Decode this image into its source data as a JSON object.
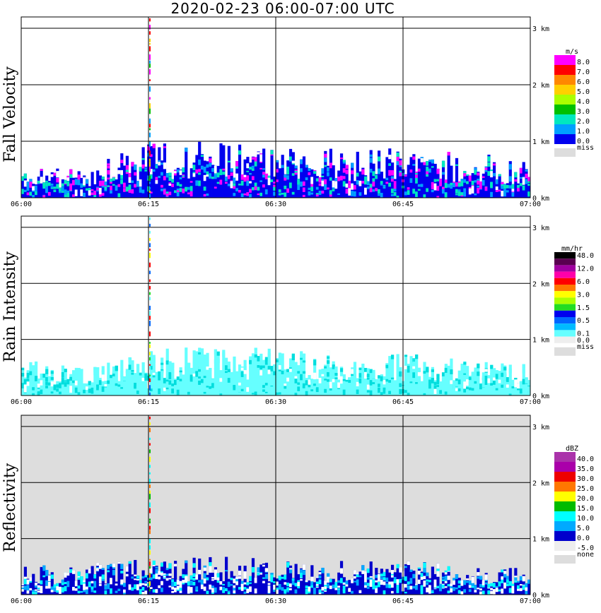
{
  "title": "2020-02-23   06:00-07:00 UTC",
  "chart_data": [
    {
      "type": "heatmap",
      "name": "fall-velocity",
      "ylabel": "Fall Velocity",
      "xlim": [
        "06:00",
        "07:00"
      ],
      "ylim": [
        0,
        3.2
      ],
      "xticks": [
        "06:00",
        "06:15",
        "06:30",
        "06:45",
        "07:00"
      ],
      "yticks": [
        "0 km",
        "1 km",
        "2 km",
        "3 km"
      ],
      "legend_unit": "m/s",
      "legend_levels": [
        "8.0",
        "7.0",
        "6.0",
        "5.0",
        "4.0",
        "3.0",
        "2.0",
        "1.0",
        "0.0"
      ],
      "legend_colors": [
        "#ff00ff",
        "#ff0000",
        "#ff8800",
        "#ffd000",
        "#aaff00",
        "#00c000",
        "#00e8c0",
        "#00a0ff",
        "#0000ee"
      ],
      "legend_missing": "miss",
      "missing_color": "#dddddd",
      "background": "#ffffff",
      "echo_top_km": [
        0.45,
        0.5,
        0.9,
        0.95,
        0.85,
        0.8,
        0.8,
        0.75,
        0.6
      ],
      "base_color": "#0000ee",
      "accent_colors": [
        "#ff00ff",
        "#00a0ff",
        "#00e8c0"
      ],
      "spike_colors": [
        "#ff00ff",
        "#ff0000",
        "#ffd000",
        "#00c000",
        "#00a0ff"
      ]
    },
    {
      "type": "heatmap",
      "name": "rain-intensity",
      "ylabel": "Rain Intensity",
      "xlim": [
        "06:00",
        "07:00"
      ],
      "ylim": [
        0,
        3.2
      ],
      "xticks": [
        "06:00",
        "06:15",
        "06:30",
        "06:45",
        "07:00"
      ],
      "yticks": [
        "0 km",
        "1 km",
        "2 km",
        "3 km"
      ],
      "legend_unit": "mm/hr",
      "legend_levels": [
        "48.0",
        "",
        "12.0",
        "",
        "6.0",
        "",
        "3.0",
        "",
        "1.5",
        "",
        "0.5",
        "",
        "0.1",
        "0.0"
      ],
      "legend_colors": [
        "#000000",
        "#5a0050",
        "#a000a0",
        "#ff00aa",
        "#ff0000",
        "#ff7700",
        "#ffff00",
        "#aaff00",
        "#22dd22",
        "#0000ee",
        "#0066ff",
        "#00bbff",
        "#66ffff",
        "#eeeeee"
      ],
      "legend_missing": "miss",
      "missing_color": "#dddddd",
      "background": "#ffffff",
      "echo_top_km": [
        0.6,
        0.45,
        0.75,
        0.8,
        0.8,
        0.75,
        0.7,
        0.6,
        0.5
      ],
      "base_color": "#66ffff",
      "accent_colors": [
        "#66ffff",
        "#00dddd"
      ],
      "spike_colors": [
        "#0066ff",
        "#ff0000",
        "#22dd22",
        "#ffff00",
        "#66ffff"
      ]
    },
    {
      "type": "heatmap",
      "name": "reflectivity",
      "ylabel": "Reflectivity",
      "xlim": [
        "06:00",
        "07:00"
      ],
      "ylim": [
        0,
        3.2
      ],
      "xticks": [
        "06:00",
        "06:15",
        "06:30",
        "06:45",
        "07:00"
      ],
      "yticks": [
        "0 km",
        "1 km",
        "2 km",
        "3 km"
      ],
      "legend_unit": "dBZ",
      "legend_levels": [
        "40.0",
        "35.0",
        "30.0",
        "25.0",
        "20.0",
        "15.0",
        "10.0",
        "5.0",
        "0.0",
        "-5.0"
      ],
      "legend_colors": [
        "#aa33aa",
        "#aa00aa",
        "#ee0000",
        "#ff7700",
        "#ffff00",
        "#00bb00",
        "#00ffff",
        "#00aaff",
        "#0000cc",
        "#eeeeee"
      ],
      "legend_missing": "none",
      "missing_color": "#dddddd",
      "background": "#dddddd",
      "echo_top_km": [
        0.5,
        0.5,
        0.6,
        0.65,
        0.6,
        0.55,
        0.55,
        0.5,
        0.45
      ],
      "base_color": "#0000cc",
      "accent_colors": [
        "#00aaff",
        "#00ffff",
        "#ffffff"
      ],
      "spike_colors": [
        "#ff7700",
        "#ffff00",
        "#00bb00",
        "#00ffff",
        "#ff0000"
      ]
    }
  ]
}
